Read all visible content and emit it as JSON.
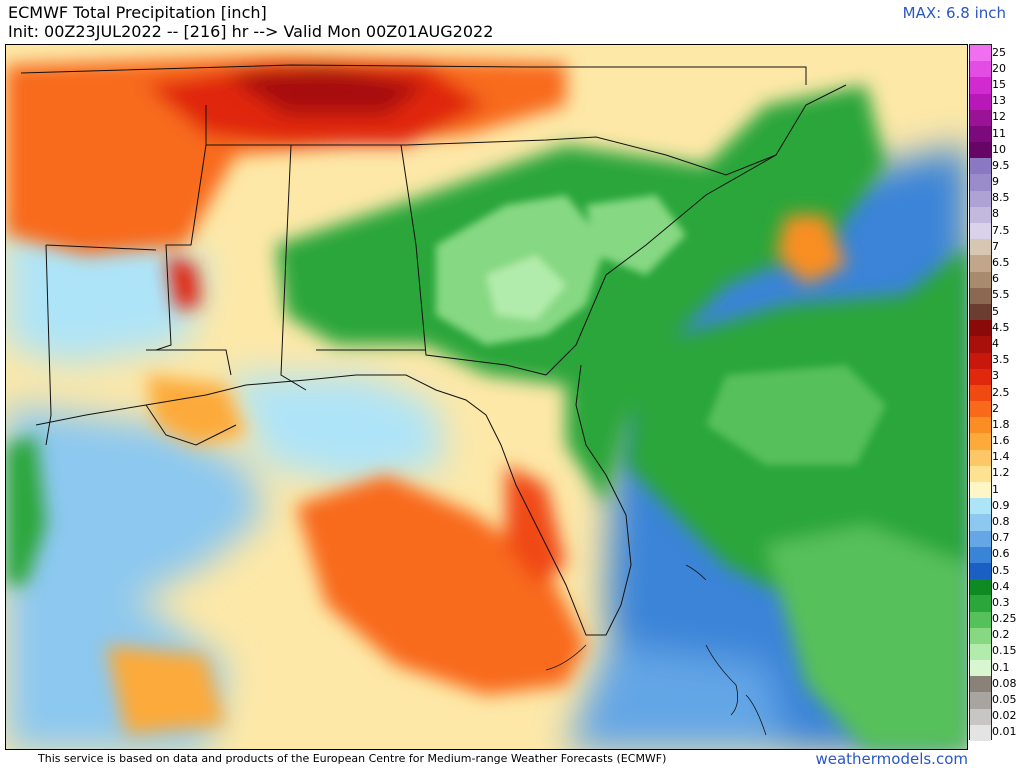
{
  "header": {
    "title": "ECMWF Total Precipitation [inch]",
    "subtitle": "Init: 00Z23JUL2022 -- [216] hr --> Valid Mon 00Z01AUG2022",
    "max_label": "MAX: 6.8 inch"
  },
  "legend": {
    "levels": [
      {
        "label": "25",
        "color": "#f06ef0"
      },
      {
        "label": "20",
        "color": "#e44de4"
      },
      {
        "label": "15",
        "color": "#d12ad1"
      },
      {
        "label": "13",
        "color": "#b818b8"
      },
      {
        "label": "12",
        "color": "#9a1296"
      },
      {
        "label": "11",
        "color": "#7d0a7c"
      },
      {
        "label": "10",
        "color": "#660566"
      },
      {
        "label": "9.5",
        "color": "#8a79c2"
      },
      {
        "label": "9",
        "color": "#9a8cca"
      },
      {
        "label": "8.5",
        "color": "#aea2d4"
      },
      {
        "label": "8",
        "color": "#c3b9de"
      },
      {
        "label": "7.5",
        "color": "#d9d2ea"
      },
      {
        "label": "7",
        "color": "#d6c6b2"
      },
      {
        "label": "6.5",
        "color": "#c2a68c"
      },
      {
        "label": "6",
        "color": "#a88a6e"
      },
      {
        "label": "5.5",
        "color": "#8b6852"
      },
      {
        "label": "5",
        "color": "#6b3c30"
      },
      {
        "label": "4.5",
        "color": "#8a0a0a"
      },
      {
        "label": "4",
        "color": "#a8100c"
      },
      {
        "label": "3.5",
        "color": "#c8180e"
      },
      {
        "label": "3",
        "color": "#e0280c"
      },
      {
        "label": "2.5",
        "color": "#f04a12"
      },
      {
        "label": "2",
        "color": "#f86a1a"
      },
      {
        "label": "1.8",
        "color": "#fa8e24"
      },
      {
        "label": "1.6",
        "color": "#fcaa3a"
      },
      {
        "label": "1.4",
        "color": "#fdc666"
      },
      {
        "label": "1.2",
        "color": "#fde292"
      },
      {
        "label": "1",
        "color": "#fff6c8"
      },
      {
        "label": "0.9",
        "color": "#aee4f8"
      },
      {
        "label": "0.8",
        "color": "#8cc8f0"
      },
      {
        "label": "0.7",
        "color": "#64a6e6"
      },
      {
        "label": "0.6",
        "color": "#3a84d8"
      },
      {
        "label": "0.5",
        "color": "#1a60c4"
      },
      {
        "label": "0.4",
        "color": "#0e8a22"
      },
      {
        "label": "0.3",
        "color": "#2aa63a"
      },
      {
        "label": "0.25",
        "color": "#56c05a"
      },
      {
        "label": "0.2",
        "color": "#86d882"
      },
      {
        "label": "0.15",
        "color": "#b2ecac"
      },
      {
        "label": "0.1",
        "color": "#d8f6d0"
      },
      {
        "label": "0.08",
        "color": "#8a8278"
      },
      {
        "label": "0.05",
        "color": "#a8a4a0"
      },
      {
        "label": "0.02",
        "color": "#c8c6c4"
      },
      {
        "label": "0.01",
        "color": "#e4e4e4"
      }
    ]
  },
  "footer": {
    "credit": "This service is based on data and products of the European Centre for Medium-range Weather Forecasts (ECMWF)",
    "brand": "weathermodels.com"
  }
}
